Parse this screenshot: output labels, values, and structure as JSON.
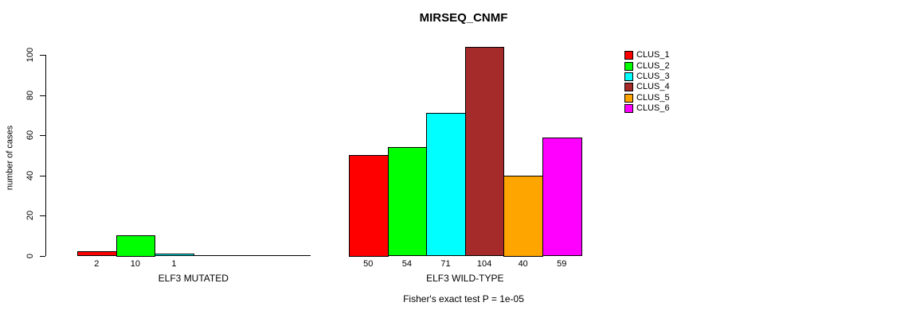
{
  "chart_data": {
    "type": "bar",
    "title": "MIRSEQ_CNMF",
    "ylabel": "number of cases",
    "ylim": [
      0,
      100
    ],
    "yticks": [
      0,
      20,
      40,
      60,
      80,
      100
    ],
    "grid": false,
    "legend_position": "top-right",
    "legend": [
      {
        "label": "CLUS_1",
        "color": "#FF0000"
      },
      {
        "label": "CLUS_2",
        "color": "#00FF00"
      },
      {
        "label": "CLUS_3",
        "color": "#00FFFF"
      },
      {
        "label": "CLUS_4",
        "color": "#A52A2A"
      },
      {
        "label": "CLUS_5",
        "color": "#FFA500"
      },
      {
        "label": "CLUS_6",
        "color": "#FF00FF"
      }
    ],
    "groups": [
      {
        "label": "ELF3 MUTATED",
        "values": [
          2,
          10,
          1,
          0,
          0,
          0
        ],
        "bar_labels": [
          "2",
          "10",
          "1",
          "",
          "",
          ""
        ]
      },
      {
        "label": "ELF3 WILD-TYPE",
        "values": [
          50,
          54,
          71,
          104,
          40,
          59
        ],
        "bar_labels": [
          "50",
          "54",
          "71",
          "104",
          "40",
          "59"
        ]
      }
    ],
    "footnote": "Fisher's exact test P = 1e-05"
  }
}
